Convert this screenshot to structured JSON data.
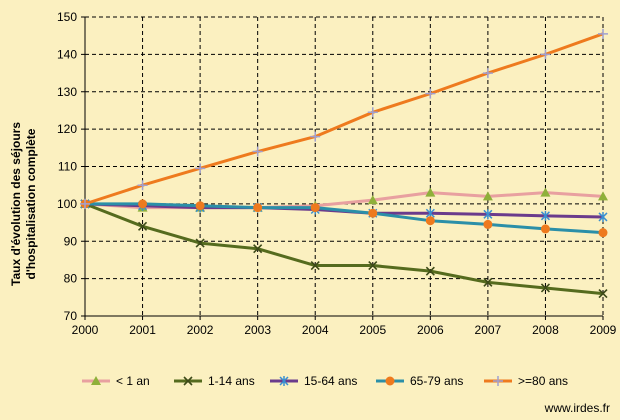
{
  "chart_data": {
    "type": "line",
    "title": "",
    "xlabel": "",
    "ylabel": "Taux d'évolution des séjours d'hospitalisation complète",
    "ylabel_lines": [
      "Taux d'évolution des séjours",
      "d'hospitalisation complète"
    ],
    "x": [
      "2000",
      "2001",
      "2002",
      "2003",
      "2004",
      "2005",
      "2006",
      "2007",
      "2008",
      "2009"
    ],
    "ylim": [
      70,
      150
    ],
    "yticks": [
      70,
      80,
      90,
      100,
      110,
      120,
      130,
      140,
      150
    ],
    "grid": true,
    "legend_position": "bottom",
    "series": [
      {
        "name": "< 1 an",
        "color": "#e8a0a0",
        "marker": "triangle-green",
        "values": [
          100,
          99,
          99,
          99,
          99.5,
          101,
          103,
          102,
          103,
          102
        ]
      },
      {
        "name": "1-14 ans",
        "color": "#556b1e",
        "marker": "x",
        "values": [
          100,
          94,
          89.5,
          88,
          83.5,
          83.5,
          82,
          79,
          77.5,
          76
        ]
      },
      {
        "name": "15-64 ans",
        "color": "#6a3b8c",
        "marker": "star",
        "values": [
          100,
          99.5,
          99,
          99,
          98.5,
          97.5,
          97.5,
          97.2,
          96.8,
          96.5
        ]
      },
      {
        "name": "65-79 ans",
        "color": "#2b8fa8",
        "marker": "circle",
        "values": [
          100,
          100,
          99.5,
          99,
          99,
          97.5,
          95.5,
          94.5,
          93.3,
          92.3
        ]
      },
      {
        "name": ">=80 ans",
        "color": "#ee7a1e",
        "marker": "plus",
        "values": [
          100,
          105,
          109.5,
          114,
          118,
          124.5,
          129.5,
          135,
          140,
          145.5
        ]
      }
    ]
  },
  "credit": "www.irdes.fr",
  "colors": {
    "background": "#fbf0c0",
    "grid": "#000000",
    "marker_triangle": "#8fb03a",
    "marker_circle": "#ee7a1e",
    "marker_star": "#3a8fd0",
    "marker_plus": "#a0a0d0"
  }
}
